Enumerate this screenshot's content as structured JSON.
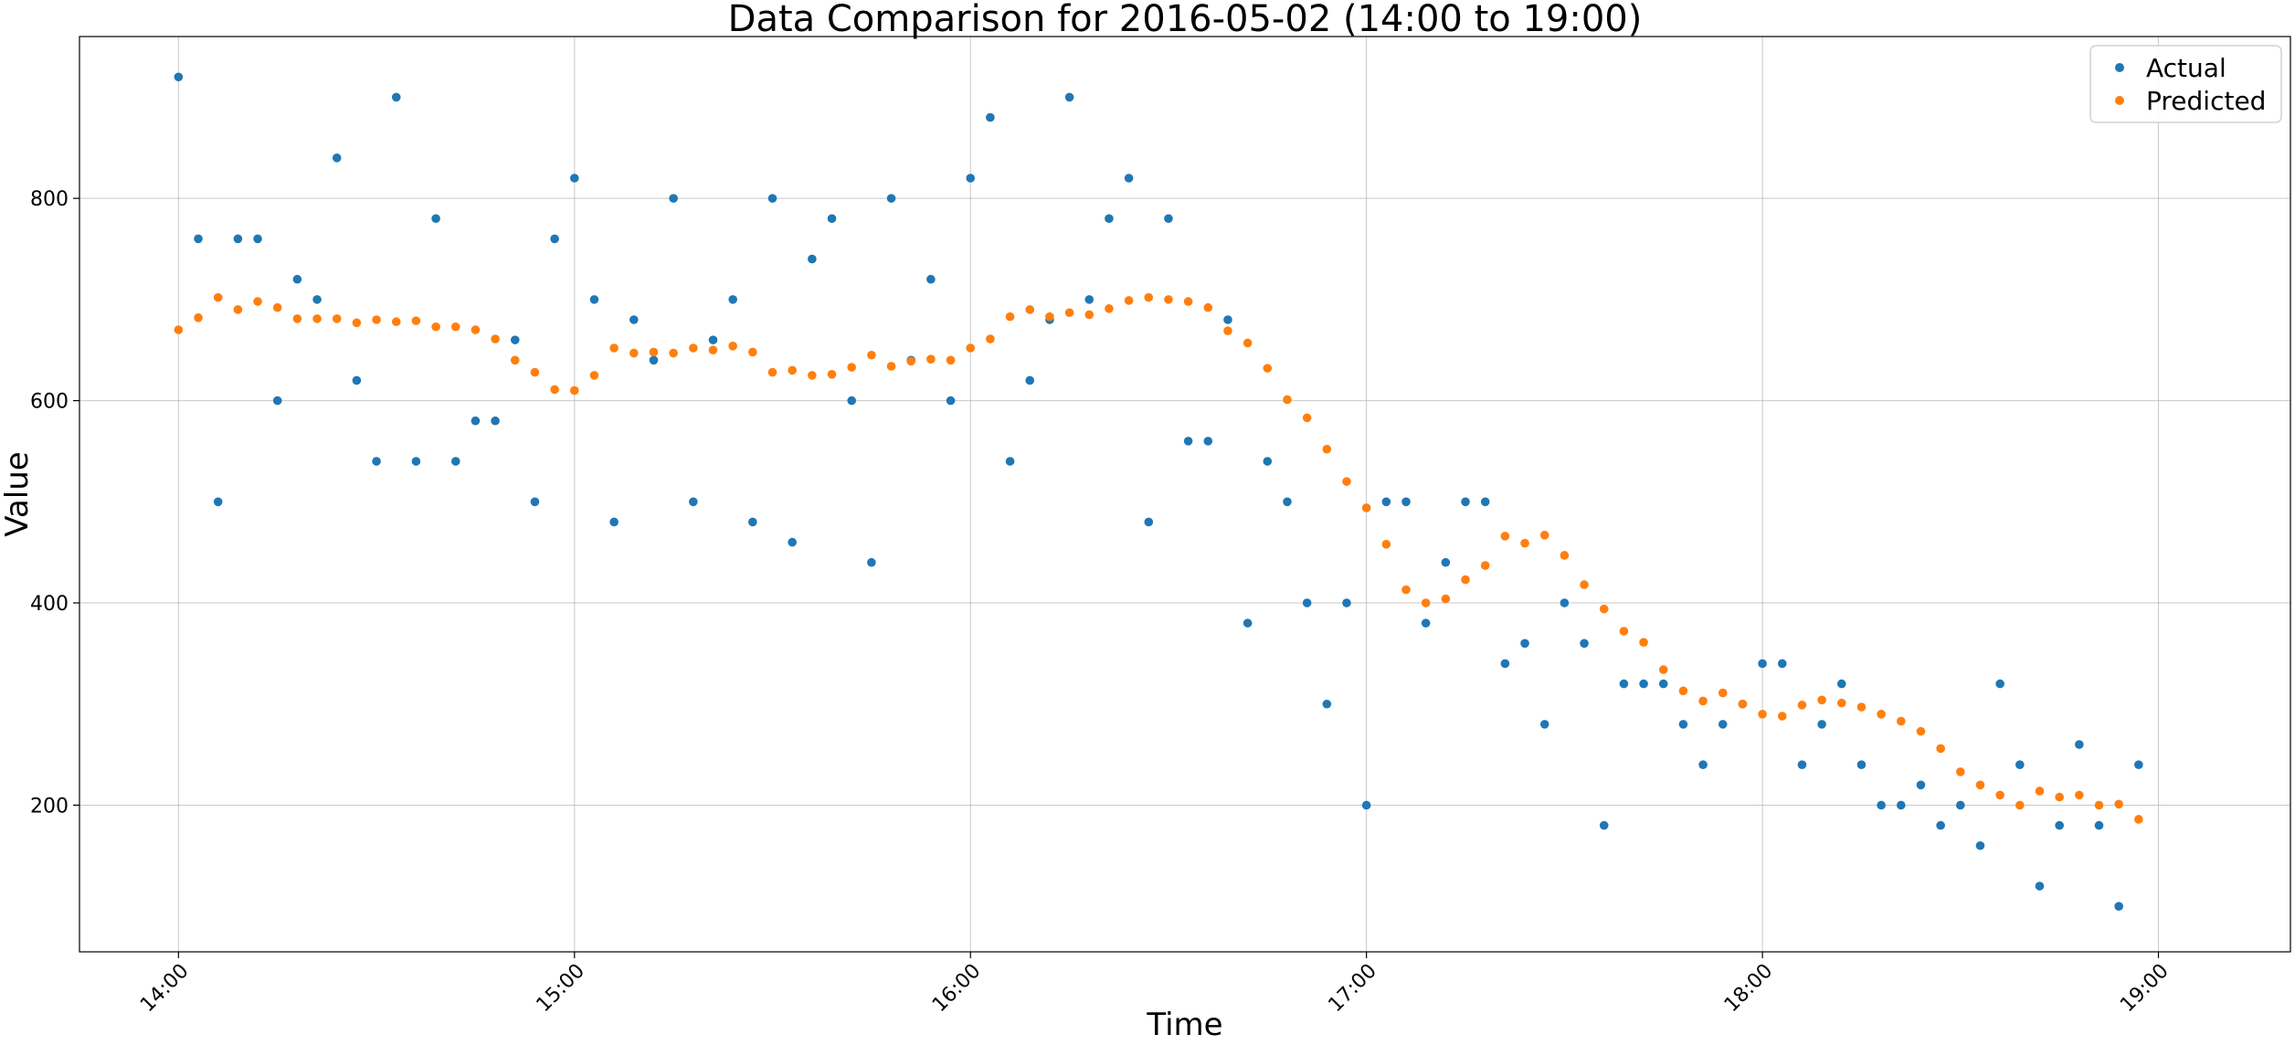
{
  "chart_data": {
    "type": "scatter",
    "title": "Data Comparison for 2016-05-02 (14:00 to 19:00)",
    "xlabel": "Time",
    "ylabel": "Value",
    "x_ticks": [
      "14:00",
      "15:00",
      "16:00",
      "17:00",
      "18:00",
      "19:00"
    ],
    "xlim": [
      "13:45",
      "19:20"
    ],
    "y_ticks": [
      200,
      400,
      600,
      800
    ],
    "ylim": [
      55,
      960
    ],
    "grid": true,
    "legend_position": "top-right",
    "x": [
      "14:00",
      "14:03",
      "14:06",
      "14:09",
      "14:12",
      "14:15",
      "14:18",
      "14:21",
      "14:24",
      "14:27",
      "14:30",
      "14:33",
      "14:36",
      "14:39",
      "14:42",
      "14:45",
      "14:48",
      "14:51",
      "14:54",
      "14:57",
      "15:00",
      "15:03",
      "15:06",
      "15:09",
      "15:12",
      "15:15",
      "15:18",
      "15:21",
      "15:24",
      "15:27",
      "15:30",
      "15:33",
      "15:36",
      "15:39",
      "15:42",
      "15:45",
      "15:48",
      "15:51",
      "15:54",
      "15:57",
      "16:00",
      "16:03",
      "16:06",
      "16:09",
      "16:12",
      "16:15",
      "16:18",
      "16:21",
      "16:24",
      "16:27",
      "16:30",
      "16:33",
      "16:36",
      "16:39",
      "16:42",
      "16:45",
      "16:48",
      "16:51",
      "16:54",
      "16:57",
      "17:00",
      "17:03",
      "17:06",
      "17:09",
      "17:12",
      "17:15",
      "17:18",
      "17:21",
      "17:24",
      "17:27",
      "17:30",
      "17:33",
      "17:36",
      "17:39",
      "17:42",
      "17:45",
      "17:48",
      "17:51",
      "17:54",
      "17:57",
      "18:00",
      "18:03",
      "18:06",
      "18:09",
      "18:12",
      "18:15",
      "18:18",
      "18:21",
      "18:24",
      "18:27",
      "18:30",
      "18:33",
      "18:36",
      "18:39",
      "18:42",
      "18:45",
      "18:48",
      "18:51",
      "18:54",
      "18:57"
    ],
    "series": [
      {
        "name": "Actual",
        "color": "#1f77b4",
        "values": [
          920,
          760,
          500,
          760,
          760,
          600,
          720,
          700,
          840,
          620,
          540,
          900,
          540,
          780,
          540,
          580,
          580,
          660,
          500,
          760,
          820,
          700,
          480,
          680,
          640,
          800,
          500,
          660,
          700,
          480,
          800,
          460,
          740,
          780,
          600,
          440,
          800,
          640,
          720,
          600,
          820,
          880,
          540,
          620,
          680,
          900,
          700,
          780,
          820,
          480,
          780,
          560,
          560,
          680,
          380,
          540,
          500,
          400,
          300,
          400,
          200,
          500,
          500,
          380,
          440,
          500,
          500,
          340,
          360,
          280,
          400,
          360,
          180,
          320,
          320,
          320,
          280,
          240,
          280,
          300,
          340,
          340,
          240,
          280,
          320,
          240,
          200,
          200,
          220,
          180,
          200,
          160,
          320,
          240,
          120,
          180,
          260,
          180,
          100,
          240
        ]
      },
      {
        "name": "Predicted",
        "color": "#ff7f0e",
        "values": [
          670,
          682,
          702,
          690,
          698,
          692,
          681,
          681,
          681,
          677,
          680,
          678,
          679,
          673,
          673,
          670,
          661,
          640,
          628,
          611,
          610,
          625,
          652,
          647,
          648,
          647,
          652,
          650,
          654,
          648,
          628,
          630,
          625,
          626,
          633,
          645,
          634,
          639,
          641,
          640,
          652,
          661,
          683,
          690,
          683,
          687,
          685,
          691,
          699,
          702,
          700,
          698,
          692,
          669,
          657,
          632,
          601,
          583,
          552,
          520,
          494,
          458,
          413,
          400,
          404,
          423,
          437,
          466,
          459,
          467,
          447,
          418,
          394,
          372,
          361,
          334,
          313,
          303,
          311,
          300,
          290,
          288,
          299,
          304,
          301,
          297,
          290,
          283,
          273,
          256,
          233,
          220,
          210,
          200,
          214,
          208,
          210,
          200,
          201,
          186
        ]
      }
    ]
  }
}
